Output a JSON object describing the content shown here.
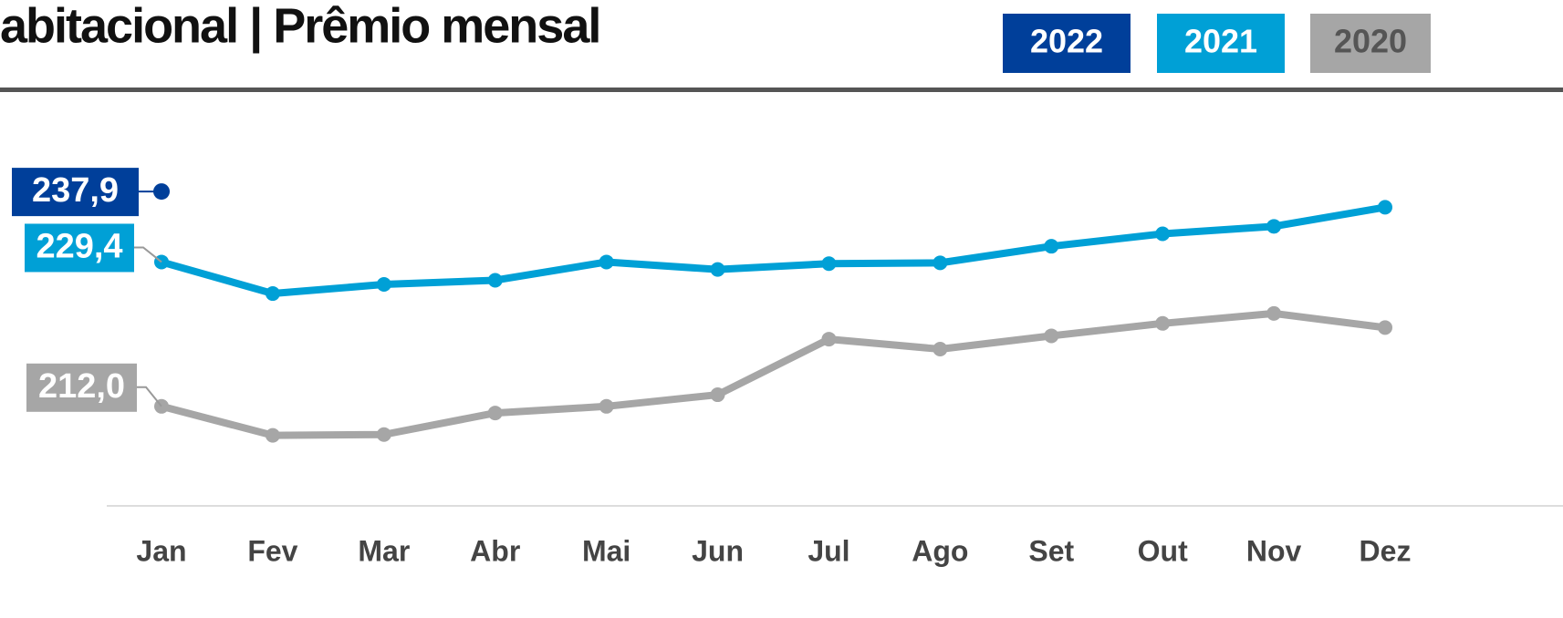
{
  "chart_data": {
    "type": "line",
    "title": "abitacional | Prêmio mensal",
    "categories": [
      "Jan",
      "Fev",
      "Mar",
      "Abr",
      "Mai",
      "Jun",
      "Jul",
      "Ago",
      "Set",
      "Out",
      "Nov",
      "Dez"
    ],
    "series": [
      {
        "name": "2022",
        "color": "#003f9a",
        "values": [
          237.9,
          null,
          null,
          null,
          null,
          null,
          null,
          null,
          null,
          null,
          null,
          null
        ],
        "value_labels": [
          "237,9",
          null,
          null,
          null,
          null,
          null,
          null,
          null,
          null,
          null,
          null,
          null
        ]
      },
      {
        "name": "2021",
        "color": "#00a0d6",
        "values": [
          229.4,
          225.6,
          226.7,
          227.2,
          229.4,
          228.5,
          229.2,
          229.3,
          231.3,
          232.8,
          233.7,
          236.0
        ],
        "value_labels": [
          "229,4",
          null,
          null,
          null,
          null,
          null,
          null,
          null,
          null,
          null,
          null,
          null
        ]
      },
      {
        "name": "2020",
        "color": "#a6a6a6",
        "values": [
          212.0,
          208.5,
          208.6,
          211.2,
          212.0,
          213.4,
          220.1,
          218.9,
          220.5,
          222.0,
          223.2,
          221.5
        ],
        "value_labels": [
          "212,0",
          null,
          null,
          null,
          null,
          null,
          null,
          null,
          null,
          null,
          null,
          null
        ]
      }
    ],
    "ylim": [
      200,
      250
    ]
  }
}
